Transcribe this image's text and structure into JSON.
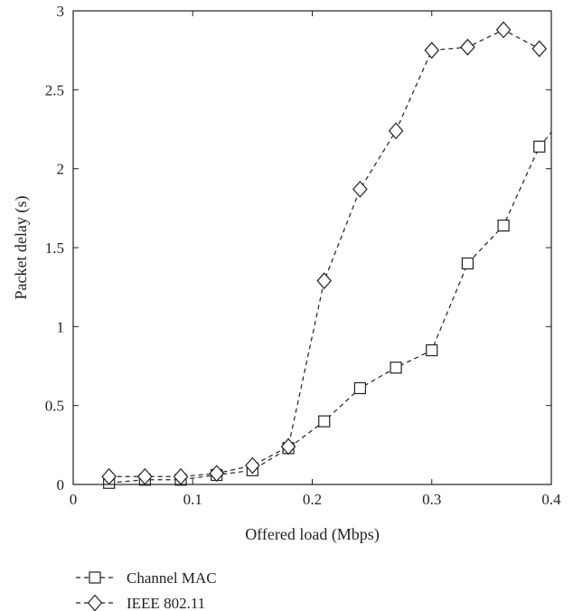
{
  "chart_data": {
    "type": "line",
    "title": "",
    "xlabel": "Offered load (Mbps)",
    "ylabel": "Packet delay (s)",
    "xlim": [
      0,
      0.4
    ],
    "ylim": [
      0,
      3
    ],
    "xticks": [
      0,
      0.1,
      0.2,
      0.3,
      0.4
    ],
    "yticks": [
      0,
      0.5,
      1,
      1.5,
      2,
      2.5,
      3
    ],
    "xtick_labels": [
      "0",
      "0.1",
      "0.2",
      "0.3",
      "0.4"
    ],
    "ytick_labels": [
      "0",
      "0.5",
      "1",
      "1.5",
      "2",
      "2.5",
      "3"
    ],
    "grid": false,
    "legend_position": "bottom-left, below axes",
    "series": [
      {
        "name": "Channel MAC",
        "marker": "square",
        "line_style": "dashed",
        "color": "#231f20",
        "x": [
          0.03,
          0.06,
          0.09,
          0.12,
          0.15,
          0.18,
          0.21,
          0.24,
          0.27,
          0.3,
          0.33,
          0.36,
          0.39
        ],
        "y": [
          0.01,
          0.03,
          0.03,
          0.06,
          0.09,
          0.23,
          0.4,
          0.61,
          0.74,
          0.85,
          1.4,
          1.64,
          2.14
        ]
      },
      {
        "name": "IEEE 802.11",
        "marker": "diamond",
        "line_style": "dashed",
        "color": "#231f20",
        "x": [
          0.03,
          0.06,
          0.09,
          0.12,
          0.15,
          0.18,
          0.21,
          0.24,
          0.27,
          0.3,
          0.33,
          0.36,
          0.39
        ],
        "y": [
          0.05,
          0.05,
          0.05,
          0.07,
          0.12,
          0.24,
          1.29,
          1.87,
          2.24,
          2.75,
          2.77,
          2.88,
          2.76
        ]
      }
    ],
    "extra_segments": [
      {
        "series": "Channel MAC",
        "x": [
          0.39,
          0.4
        ],
        "y": [
          2.14,
          2.23
        ]
      }
    ]
  }
}
